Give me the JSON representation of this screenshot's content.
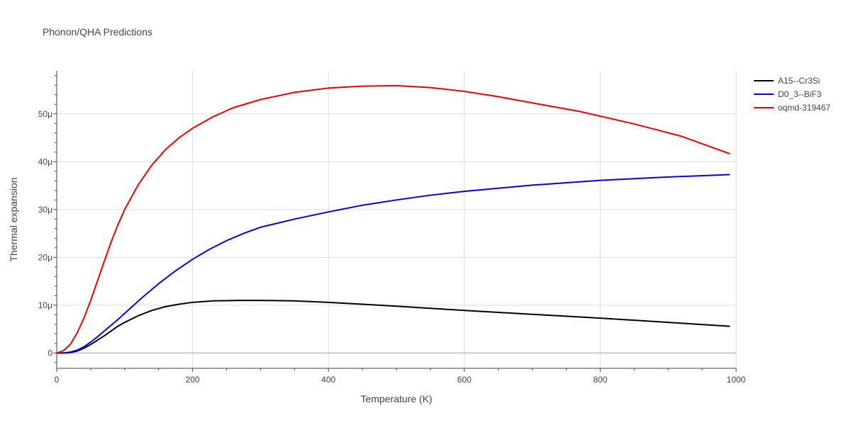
{
  "chart_data": {
    "type": "line",
    "title": "Phonon/QHA Predictions",
    "xlabel": "Temperature (K)",
    "ylabel": "Thermal expansion",
    "xlim": [
      0,
      1000
    ],
    "ylim": [
      -3.2e-06,
      5.9e-05
    ],
    "xticks": [
      0,
      200,
      400,
      600,
      800,
      1000
    ],
    "xtick_labels": [
      "0",
      "200",
      "400",
      "600",
      "800",
      "1000"
    ],
    "yticks": [
      0,
      1e-05,
      2e-05,
      3e-05,
      4e-05,
      5e-05
    ],
    "ytick_labels": [
      "0",
      "10μ",
      "20μ",
      "30μ",
      "40μ",
      "50μ"
    ],
    "grid": true,
    "legend_position": "top-right",
    "series": [
      {
        "name": "A15--Cr3Si",
        "color": "#000000",
        "x": [
          0,
          10,
          20,
          30,
          40,
          50,
          60,
          70,
          80,
          90,
          100,
          120,
          140,
          160,
          180,
          200,
          230,
          270,
          300,
          350,
          400,
          450,
          500,
          600,
          700,
          800,
          900,
          990
        ],
        "y": [
          0,
          0.0,
          1e-07,
          4e-07,
          1e-06,
          1.8e-06,
          2.7e-06,
          3.6e-06,
          4.6e-06,
          5.6e-06,
          6.4e-06,
          7.8e-06,
          8.9e-06,
          9.7e-06,
          1.02e-05,
          1.06e-05,
          1.09e-05,
          1.1e-05,
          1.1e-05,
          1.09e-05,
          1.06e-05,
          1.02e-05,
          9.8e-06,
          8.9e-06,
          8.1e-06,
          7.3e-06,
          6.4e-06,
          5.6e-06
        ]
      },
      {
        "name": "D0_3--BiF3",
        "color": "#0000ee",
        "x": [
          0,
          10,
          20,
          30,
          40,
          50,
          60,
          70,
          80,
          90,
          100,
          125,
          150,
          175,
          200,
          225,
          250,
          275,
          300,
          350,
          400,
          450,
          500,
          550,
          600,
          700,
          800,
          900,
          990
        ],
        "y": [
          0,
          0.0,
          2e-07,
          6e-07,
          1.3e-06,
          2.3e-06,
          3.4e-06,
          4.6e-06,
          5.8e-06,
          7e-06,
          8.3e-06,
          1.15e-05,
          1.45e-05,
          1.72e-05,
          1.96e-05,
          2.17e-05,
          2.35e-05,
          2.5e-05,
          2.63e-05,
          2.8e-05,
          2.95e-05,
          3.09e-05,
          3.2e-05,
          3.3e-05,
          3.38e-05,
          3.51e-05,
          3.61e-05,
          3.68e-05,
          3.73e-05
        ]
      },
      {
        "name": "oqmd-319467",
        "color": "#ee0000",
        "x": [
          0,
          10,
          20,
          30,
          40,
          50,
          60,
          70,
          80,
          90,
          100,
          120,
          140,
          160,
          180,
          200,
          230,
          260,
          300,
          350,
          400,
          450,
          500,
          550,
          600,
          650,
          700,
          770,
          850,
          920,
          990
        ],
        "y": [
          0,
          5e-07,
          1.8e-06,
          4.2e-06,
          7.3e-06,
          1.1e-05,
          1.51e-05,
          1.92e-05,
          2.32e-05,
          2.68e-05,
          3e-05,
          3.52e-05,
          3.93e-05,
          4.25e-05,
          4.5e-05,
          4.7e-05,
          4.94e-05,
          5.13e-05,
          5.3e-05,
          5.45e-05,
          5.54e-05,
          5.58e-05,
          5.59e-05,
          5.55e-05,
          5.47e-05,
          5.36e-05,
          5.23e-05,
          5.05e-05,
          4.79e-05,
          4.53e-05,
          4.17e-05
        ]
      }
    ]
  }
}
